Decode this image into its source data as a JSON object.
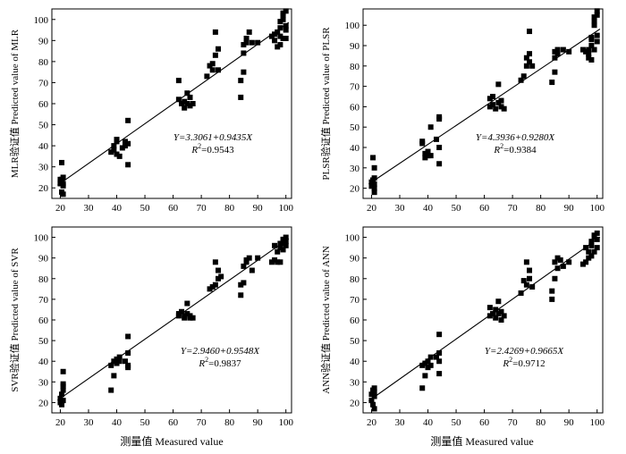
{
  "x_axis_label": "测量值 Measured value",
  "chart_data": [
    {
      "type": "scatter",
      "model": "MLR",
      "ylabel": "MLR验证值 Predicted value of MLR",
      "xlim": [
        17,
        102
      ],
      "ylim": [
        15,
        105
      ],
      "xticks": [
        20,
        30,
        40,
        50,
        60,
        70,
        80,
        90,
        100
      ],
      "yticks": [
        20,
        30,
        40,
        50,
        60,
        70,
        80,
        90,
        100
      ],
      "equation": "Y=3.3061+0.9435X",
      "r2_prefix": "R",
      "r2_value": "=0.9543",
      "fit": {
        "intercept": 3.3061,
        "slope": 0.9435
      },
      "points": [
        [
          20,
          24
        ],
        [
          20,
          22
        ],
        [
          20,
          23
        ],
        [
          20.5,
          24
        ],
        [
          21,
          25
        ],
        [
          21,
          22
        ],
        [
          21,
          21
        ],
        [
          20.5,
          32
        ],
        [
          20.5,
          18
        ],
        [
          21,
          17
        ],
        [
          38,
          37
        ],
        [
          39,
          40
        ],
        [
          39,
          38
        ],
        [
          40,
          42
        ],
        [
          40,
          43
        ],
        [
          40,
          36
        ],
        [
          41,
          35
        ],
        [
          42,
          39
        ],
        [
          43,
          40
        ],
        [
          43,
          42
        ],
        [
          44,
          52
        ],
        [
          44,
          41
        ],
        [
          44,
          31
        ],
        [
          62,
          71
        ],
        [
          62,
          62
        ],
        [
          63,
          60
        ],
        [
          64,
          58
        ],
        [
          64,
          61
        ],
        [
          65,
          65
        ],
        [
          65,
          60
        ],
        [
          66,
          59
        ],
        [
          66,
          63
        ],
        [
          67,
          60
        ],
        [
          72,
          73
        ],
        [
          73,
          78
        ],
        [
          74,
          79
        ],
        [
          74,
          76
        ],
        [
          75,
          83
        ],
        [
          75,
          94
        ],
        [
          76,
          86
        ],
        [
          76,
          76
        ],
        [
          84,
          63
        ],
        [
          84,
          71
        ],
        [
          85,
          75
        ],
        [
          85,
          84
        ],
        [
          85,
          88
        ],
        [
          86,
          91
        ],
        [
          86,
          89
        ],
        [
          87,
          94
        ],
        [
          88,
          89
        ],
        [
          90,
          89
        ],
        [
          95,
          92
        ],
        [
          96,
          93
        ],
        [
          96,
          90
        ],
        [
          97,
          87
        ],
        [
          97,
          94
        ],
        [
          98,
          96
        ],
        [
          98,
          92
        ],
        [
          98,
          99
        ],
        [
          99,
          100
        ],
        [
          99,
          102
        ],
        [
          99,
          103
        ],
        [
          100,
          104
        ],
        [
          100,
          97
        ],
        [
          100,
          95
        ],
        [
          99,
          91
        ],
        [
          98,
          88
        ],
        [
          100,
          91
        ]
      ]
    },
    {
      "type": "scatter",
      "model": "PLSR",
      "ylabel": "PLSR验证值 Predicted value of PLSR",
      "xlim": [
        17,
        102
      ],
      "ylim": [
        15,
        108
      ],
      "xticks": [
        20,
        30,
        40,
        50,
        60,
        70,
        80,
        90,
        100
      ],
      "yticks": [
        20,
        30,
        40,
        50,
        60,
        70,
        80,
        90,
        100
      ],
      "equation": "Y=4.3936+0.9280X",
      "r2_prefix": "R",
      "r2_value": "=0.9384",
      "fit": {
        "intercept": 4.3936,
        "slope": 0.928
      },
      "points": [
        [
          20,
          23
        ],
        [
          20,
          21
        ],
        [
          20.5,
          24
        ],
        [
          21,
          22
        ],
        [
          21,
          20
        ],
        [
          21,
          18
        ],
        [
          20.5,
          35
        ],
        [
          21,
          30
        ],
        [
          21,
          25
        ],
        [
          38,
          43
        ],
        [
          38,
          42
        ],
        [
          39,
          37
        ],
        [
          39,
          35
        ],
        [
          40,
          38
        ],
        [
          40,
          36
        ],
        [
          41,
          36
        ],
        [
          41,
          50
        ],
        [
          43,
          44
        ],
        [
          44,
          55
        ],
        [
          44,
          54
        ],
        [
          44,
          40
        ],
        [
          44,
          32
        ],
        [
          62,
          64
        ],
        [
          62,
          60
        ],
        [
          63,
          65
        ],
        [
          63,
          61
        ],
        [
          64,
          59
        ],
        [
          65,
          62
        ],
        [
          65,
          71
        ],
        [
          66,
          60
        ],
        [
          66,
          63
        ],
        [
          67,
          59
        ],
        [
          73,
          73
        ],
        [
          74,
          75
        ],
        [
          75,
          80
        ],
        [
          75,
          84
        ],
        [
          76,
          82
        ],
        [
          76,
          86
        ],
        [
          76,
          97
        ],
        [
          77,
          80
        ],
        [
          84,
          72
        ],
        [
          85,
          77
        ],
        [
          85,
          84
        ],
        [
          85,
          87
        ],
        [
          86,
          88
        ],
        [
          86,
          86
        ],
        [
          88,
          88
        ],
        [
          90,
          87
        ],
        [
          95,
          88
        ],
        [
          96,
          87
        ],
        [
          97,
          86
        ],
        [
          97,
          84
        ],
        [
          97,
          88
        ],
        [
          98,
          90
        ],
        [
          98,
          94
        ],
        [
          98,
          93
        ],
        [
          99,
          100
        ],
        [
          99,
          102
        ],
        [
          99,
          104
        ],
        [
          100,
          105
        ],
        [
          100,
          107
        ],
        [
          100,
          92
        ],
        [
          100,
          95
        ],
        [
          99,
          88
        ],
        [
          98,
          83
        ]
      ]
    },
    {
      "type": "scatter",
      "model": "SVR",
      "ylabel": "SVR验证值 Predicted value of SVR",
      "xlim": [
        17,
        102
      ],
      "ylim": [
        15,
        105
      ],
      "xticks": [
        20,
        30,
        40,
        50,
        60,
        70,
        80,
        90,
        100
      ],
      "yticks": [
        20,
        30,
        40,
        50,
        60,
        70,
        80,
        90,
        100
      ],
      "equation": "Y=2.9460+0.9548X",
      "r2_prefix": "R",
      "r2_value": "=0.9837",
      "fit": {
        "intercept": 2.946,
        "slope": 0.9548
      },
      "points": [
        [
          20,
          20
        ],
        [
          20,
          22
        ],
        [
          20.5,
          24
        ],
        [
          21,
          21
        ],
        [
          21,
          26
        ],
        [
          21,
          28
        ],
        [
          21,
          29
        ],
        [
          21,
          35
        ],
        [
          20.5,
          19
        ],
        [
          38,
          38
        ],
        [
          38,
          26
        ],
        [
          39,
          40
        ],
        [
          39,
          33
        ],
        [
          40,
          41
        ],
        [
          40,
          39
        ],
        [
          41,
          40
        ],
        [
          41,
          42
        ],
        [
          43,
          40
        ],
        [
          44,
          44
        ],
        [
          44,
          52
        ],
        [
          44,
          38
        ],
        [
          44,
          37
        ],
        [
          62,
          63
        ],
        [
          62,
          62
        ],
        [
          63,
          64
        ],
        [
          64,
          61
        ],
        [
          64,
          62
        ],
        [
          65,
          68
        ],
        [
          65,
          63
        ],
        [
          66,
          61
        ],
        [
          66,
          62
        ],
        [
          67,
          61
        ],
        [
          73,
          75
        ],
        [
          74,
          76
        ],
        [
          75,
          77
        ],
        [
          75,
          88
        ],
        [
          76,
          84
        ],
        [
          76,
          80
        ],
        [
          77,
          81
        ],
        [
          84,
          72
        ],
        [
          84,
          77
        ],
        [
          85,
          78
        ],
        [
          85,
          86
        ],
        [
          86,
          88
        ],
        [
          86,
          89
        ],
        [
          87,
          90
        ],
        [
          88,
          84
        ],
        [
          90,
          90
        ],
        [
          95,
          88
        ],
        [
          96,
          89
        ],
        [
          96,
          96
        ],
        [
          97,
          93
        ],
        [
          97,
          88
        ],
        [
          98,
          95
        ],
        [
          98,
          97
        ],
        [
          99,
          97
        ],
        [
          99,
          99
        ],
        [
          100,
          100
        ],
        [
          100,
          98
        ],
        [
          100,
          96
        ],
        [
          99,
          94
        ],
        [
          98,
          88
        ]
      ]
    },
    {
      "type": "scatter",
      "model": "ANN",
      "ylabel": "ANN验证值 Predicted value of ANN",
      "xlim": [
        17,
        102
      ],
      "ylim": [
        15,
        105
      ],
      "xticks": [
        20,
        30,
        40,
        50,
        60,
        70,
        80,
        90,
        100
      ],
      "yticks": [
        20,
        30,
        40,
        50,
        60,
        70,
        80,
        90,
        100
      ],
      "equation": "Y=2.4269+0.9665X",
      "r2_prefix": "R",
      "r2_value": "=0.9712",
      "fit": {
        "intercept": 2.4269,
        "slope": 0.9665
      },
      "points": [
        [
          20,
          21
        ],
        [
          20,
          24
        ],
        [
          20.5,
          26
        ],
        [
          21,
          23
        ],
        [
          21,
          25
        ],
        [
          21,
          27
        ],
        [
          21,
          17
        ],
        [
          20.5,
          19
        ],
        [
          38,
          38
        ],
        [
          38,
          27
        ],
        [
          39,
          39
        ],
        [
          39,
          33
        ],
        [
          40,
          40
        ],
        [
          40,
          37
        ],
        [
          41,
          42
        ],
        [
          41,
          38
        ],
        [
          43,
          42
        ],
        [
          44,
          53
        ],
        [
          44,
          44
        ],
        [
          44,
          40
        ],
        [
          44,
          34
        ],
        [
          62,
          62
        ],
        [
          62,
          66
        ],
        [
          63,
          63
        ],
        [
          64,
          61
        ],
        [
          64,
          65
        ],
        [
          65,
          69
        ],
        [
          65,
          63
        ],
        [
          66,
          60
        ],
        [
          66,
          64
        ],
        [
          67,
          62
        ],
        [
          73,
          73
        ],
        [
          74,
          79
        ],
        [
          75,
          77
        ],
        [
          75,
          88
        ],
        [
          76,
          84
        ],
        [
          76,
          80
        ],
        [
          77,
          76
        ],
        [
          84,
          70
        ],
        [
          84,
          74
        ],
        [
          85,
          80
        ],
        [
          85,
          88
        ],
        [
          86,
          90
        ],
        [
          86,
          85
        ],
        [
          87,
          89
        ],
        [
          88,
          86
        ],
        [
          90,
          88
        ],
        [
          95,
          87
        ],
        [
          96,
          88
        ],
        [
          96,
          95
        ],
        [
          97,
          93
        ],
        [
          97,
          90
        ],
        [
          98,
          96
        ],
        [
          98,
          98
        ],
        [
          99,
          100
        ],
        [
          99,
          101
        ],
        [
          100,
          102
        ],
        [
          100,
          99
        ],
        [
          100,
          95
        ],
        [
          99,
          93
        ],
        [
          98,
          91
        ]
      ]
    }
  ]
}
